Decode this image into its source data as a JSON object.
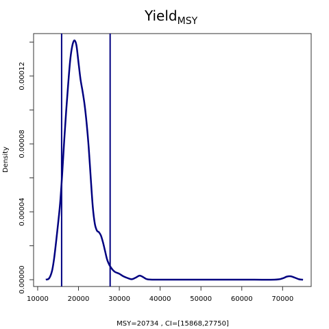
{
  "chart_data": {
    "type": "line",
    "title": "Yield",
    "title_subscript": "MSY",
    "xlabel": "MSY=20734 , CI=[15868,27750]",
    "ylabel": "Density",
    "xlim": [
      9000,
      77000
    ],
    "ylim": [
      -4e-06,
      0.000145
    ],
    "x_ticks": [
      10000,
      20000,
      30000,
      40000,
      50000,
      60000,
      70000
    ],
    "x_tick_labels": [
      "10000",
      "20000",
      "30000",
      "40000",
      "50000",
      "60000",
      "70000"
    ],
    "y_ticks": [
      0,
      4e-05,
      8e-05,
      0.00012
    ],
    "y_tick_labels": [
      "0.00000",
      "0.00004",
      "0.00008",
      "0.00012"
    ],
    "y_minor_ticks": [
      2e-05,
      6e-05,
      0.0001,
      0.00014
    ],
    "grid": false,
    "vertical_lines": [
      15868,
      27750
    ],
    "line_color": "#000080",
    "series": [
      {
        "x": [
          12000,
          12800,
          13500,
          14000,
          14500,
          15000,
          15500,
          16000,
          16500,
          17000,
          17500,
          18000,
          18500,
          19000,
          19500,
          20000,
          20500,
          21000,
          21500,
          22000,
          22500,
          23000,
          23500,
          24000,
          24500,
          25000,
          25500,
          26000,
          26500,
          27000,
          27500,
          28000,
          28500,
          29000,
          30000,
          31000,
          32000,
          33000,
          34000,
          35000,
          36000,
          37000,
          40000,
          50000,
          60000,
          68000,
          70000,
          71000,
          72000,
          73000,
          74000,
          75000
        ],
        "y": [
          0,
          8e-07,
          5e-06,
          1.2e-05,
          2.2e-05,
          3.3e-05,
          4.5e-05,
          6.2e-05,
          8.2e-05,
          0.0001,
          0.000116,
          0.00013,
          0.000138,
          0.000141,
          0.000138,
          0.000128,
          0.000118,
          0.000111,
          0.000103,
          9.2e-05,
          7.8e-05,
          6e-05,
          4.3e-05,
          3.3e-05,
          2.9e-05,
          2.8e-05,
          2.6e-05,
          2.2e-05,
          1.7e-05,
          1.2e-05,
          9e-06,
          7e-06,
          5.5e-06,
          4.5e-06,
          3.5e-06,
          2e-06,
          1e-06,
          3e-07,
          1.2e-06,
          2.4e-06,
          1.3e-06,
          2e-07,
          5e-08,
          5e-08,
          5e-08,
          5e-08,
          8e-07,
          1.8e-06,
          2e-06,
          1.2e-06,
          3e-07,
          0
        ]
      }
    ]
  }
}
